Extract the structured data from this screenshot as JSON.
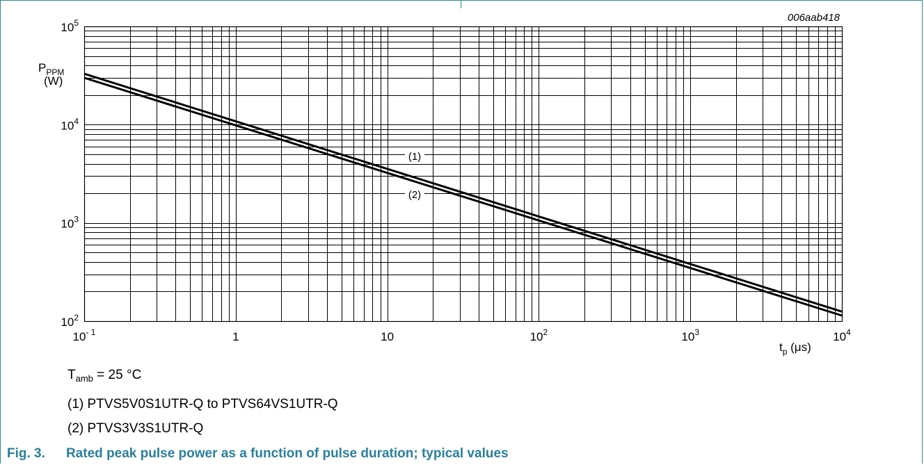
{
  "figure": {
    "code": "006aab418",
    "number": "Fig. 3.",
    "caption": "Rated peak pulse power as a function of pulse duration; typical values"
  },
  "notes": {
    "tamb_symbol": "T",
    "tamb_sub": "amb",
    "tamb_value": " = 25 °C",
    "series1": "(1) PTVS5V0S1UTR-Q to PTVS64VS1UTR-Q",
    "series2": "(2) PTVS3V3S1UTR-Q"
  },
  "colors": {
    "accent": "#2a7f9b",
    "frame": "#2e8b86",
    "grid": "#000000"
  },
  "chart_data": {
    "type": "line",
    "title": "",
    "xscale": "log",
    "yscale": "log",
    "xlim": [
      0.1,
      10000
    ],
    "ylim": [
      100,
      100000
    ],
    "grid": true,
    "ylabel": {
      "symbol": "P",
      "sub": "PPM",
      "unit": "(W)"
    },
    "xlabel": {
      "symbol": "t",
      "sub": "p",
      "unit": " (μs)"
    },
    "xticks": [
      {
        "value": 0.1,
        "base": "10",
        "exp": "- 1"
      },
      {
        "value": 1,
        "base": "1",
        "exp": ""
      },
      {
        "value": 10,
        "base": "10",
        "exp": ""
      },
      {
        "value": 100,
        "base": "10",
        "exp": "2"
      },
      {
        "value": 1000,
        "base": "10",
        "exp": "3"
      },
      {
        "value": 10000,
        "base": "10",
        "exp": "4"
      }
    ],
    "yticks": [
      {
        "value": 100,
        "base": "10",
        "exp": "2"
      },
      {
        "value": 1000,
        "base": "10",
        "exp": "3"
      },
      {
        "value": 10000,
        "base": "10",
        "exp": "4"
      },
      {
        "value": 100000,
        "base": "10",
        "exp": "5"
      }
    ],
    "series": [
      {
        "name": "(1)",
        "x": [
          0.1,
          10000
        ],
        "y": [
          33000,
          125
        ]
      },
      {
        "name": "(2)",
        "x": [
          0.1,
          10000
        ],
        "y": [
          30000,
          114
        ]
      }
    ]
  }
}
